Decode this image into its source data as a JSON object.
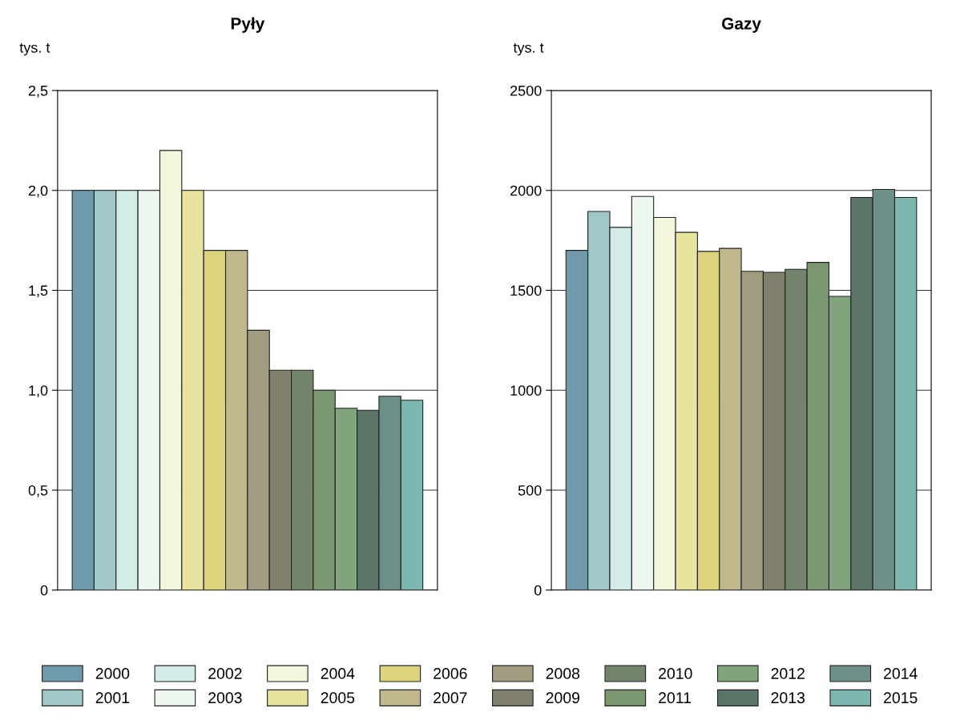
{
  "chart_data": [
    {
      "type": "bar",
      "title": "Pyły",
      "ylabel": "tys. t",
      "categories": [
        null
      ],
      "ylim": [
        0,
        2.5
      ],
      "yticks": [
        {
          "value": 0,
          "label": "0"
        },
        {
          "value": 0.5,
          "label": "0,5"
        },
        {
          "value": 1,
          "label": "1,0"
        },
        {
          "value": 1.5,
          "label": "1,5"
        },
        {
          "value": 2,
          "label": "2,0"
        },
        {
          "value": 2.5,
          "label": "2,5"
        }
      ],
      "grid": "y",
      "legend": "bottom",
      "series": [
        {
          "name": "2000",
          "color": "#6f9aab",
          "values": [
            2.0
          ]
        },
        {
          "name": "2001",
          "color": "#a0c8c8",
          "values": [
            2.0
          ]
        },
        {
          "name": "2002",
          "color": "#d4ece8",
          "values": [
            2.0
          ]
        },
        {
          "name": "2003",
          "color": "#eef6f0",
          "values": [
            2.0
          ]
        },
        {
          "name": "2004",
          "color": "#f4f6dc",
          "values": [
            2.2
          ]
        },
        {
          "name": "2005",
          "color": "#e8e4a0",
          "values": [
            2.0
          ]
        },
        {
          "name": "2006",
          "color": "#dcd47c",
          "values": [
            1.7
          ]
        },
        {
          "name": "2007",
          "color": "#c0b88c",
          "values": [
            1.7
          ]
        },
        {
          "name": "2008",
          "color": "#a09c80",
          "values": [
            1.3
          ]
        },
        {
          "name": "2009",
          "color": "#80806c",
          "values": [
            1.1
          ]
        },
        {
          "name": "2010",
          "color": "#74846c",
          "values": [
            1.1
          ]
        },
        {
          "name": "2011",
          "color": "#7c9870",
          "values": [
            1.0
          ]
        },
        {
          "name": "2012",
          "color": "#80a47c",
          "values": [
            0.91
          ]
        },
        {
          "name": "2013",
          "color": "#5c7468",
          "values": [
            0.9
          ]
        },
        {
          "name": "2014",
          "color": "#6c9088",
          "values": [
            0.97
          ]
        },
        {
          "name": "2015",
          "color": "#7cb8b0",
          "values": [
            0.95
          ]
        }
      ]
    },
    {
      "type": "bar",
      "title": "Gazy",
      "ylabel": "tys. t",
      "categories": [
        null
      ],
      "ylim": [
        0,
        2500
      ],
      "yticks": [
        0,
        500,
        1000,
        1500,
        2000,
        2500
      ],
      "grid": "y",
      "series": [
        {
          "color": "#6f9aab",
          "values": [
            1700
          ]
        },
        {
          "color": "#a0c8c8",
          "values": [
            1895
          ]
        },
        {
          "color": "#d4ece8",
          "values": [
            1815
          ]
        },
        {
          "color": "#eef6f0",
          "values": [
            1970
          ]
        },
        {
          "color": "#f4f6dc",
          "values": [
            1865
          ]
        },
        {
          "color": "#e8e4a0",
          "values": [
            1790
          ]
        },
        {
          "color": "#dcd47c",
          "values": [
            1695
          ]
        },
        {
          "color": "#c0b88c",
          "values": [
            1710
          ]
        },
        {
          "color": "#a09c80",
          "values": [
            1595
          ]
        },
        {
          "color": "#80806c",
          "values": [
            1590
          ]
        },
        {
          "color": "#74846c",
          "values": [
            1605
          ]
        },
        {
          "color": "#7c9870",
          "values": [
            1640
          ]
        },
        {
          "color": "#80a47c",
          "values": [
            1470
          ]
        },
        {
          "color": "#5c7468",
          "values": [
            1965
          ]
        },
        {
          "color": "#6c9088",
          "values": [
            2005
          ]
        },
        {
          "color": "#7cb8b0",
          "values": [
            1965
          ]
        }
      ]
    }
  ]
}
